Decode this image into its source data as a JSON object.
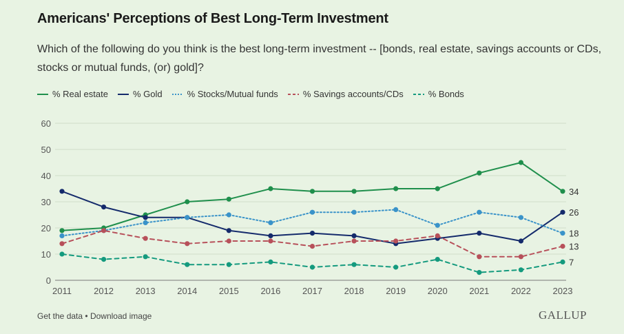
{
  "title": "Americans' Perceptions of Best Long-Term Investment",
  "subtitle": "Which of the following do you think is the best long-term investment -- [bonds, real estate, savings accounts or CDs, stocks or mutual funds, (or) gold]?",
  "footer": {
    "get_data": "Get the data",
    "separator": "•",
    "download": "Download image",
    "brand": "GALLUP"
  },
  "chart_data": {
    "type": "line",
    "x": [
      "2011",
      "2012",
      "2013",
      "2014",
      "2015",
      "2016",
      "2017",
      "2018",
      "2019",
      "2020",
      "2021",
      "2022",
      "2023"
    ],
    "ylim": [
      0,
      60
    ],
    "yticks": [
      0,
      10,
      20,
      30,
      40,
      50,
      60
    ],
    "grid": "horizontal",
    "legend_position": "top-left",
    "series": [
      {
        "name": "% Real estate",
        "color": "#1f8f4c",
        "style": "solid",
        "values": [
          19,
          20,
          25,
          30,
          31,
          35,
          34,
          34,
          35,
          35,
          41,
          45,
          34
        ],
        "end_label": "34"
      },
      {
        "name": "% Gold",
        "color": "#142a6b",
        "style": "solid",
        "values": [
          34,
          28,
          24,
          24,
          19,
          17,
          18,
          17,
          14,
          16,
          18,
          15,
          26
        ],
        "end_label": "26"
      },
      {
        "name": "% Stocks/Mutual funds",
        "color": "#3a93c9",
        "style": "dotted",
        "values": [
          17,
          19,
          22,
          24,
          25,
          22,
          26,
          26,
          27,
          21,
          26,
          24,
          18
        ],
        "end_label": "18"
      },
      {
        "name": "% Savings accounts/CDs",
        "color": "#b7505a",
        "style": "dashed",
        "values": [
          14,
          19,
          16,
          14,
          15,
          15,
          13,
          15,
          15,
          17,
          9,
          9,
          13
        ],
        "end_label": "13"
      },
      {
        "name": "% Bonds",
        "color": "#149a7e",
        "style": "dashed",
        "values": [
          10,
          8,
          9,
          6,
          6,
          7,
          5,
          6,
          5,
          8,
          3,
          4,
          7
        ],
        "end_label": "7"
      }
    ]
  }
}
